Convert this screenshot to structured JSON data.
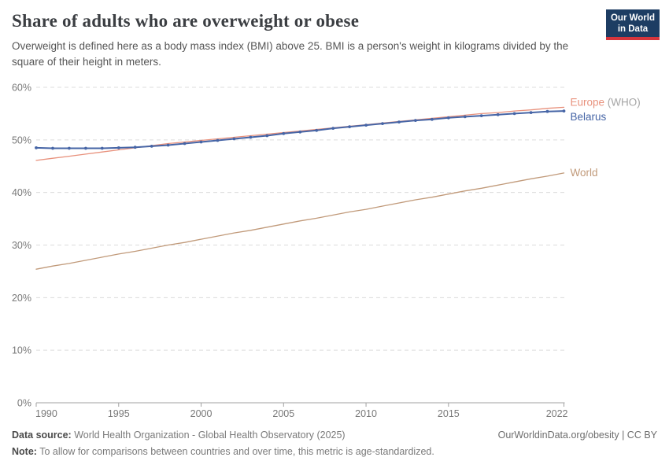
{
  "header": {
    "title": "Share of adults who are overweight or obese",
    "subtitle": "Overweight is defined here as a body mass index (BMI) above 25. BMI is a person's weight in kilograms divided by the square of their height in meters.",
    "logo": {
      "line1": "Our World",
      "line2": "in Data",
      "bg_color": "#1d3d63",
      "accent_color": "#d6353c"
    }
  },
  "chart_data": {
    "type": "line",
    "title": "Share of adults who are overweight or obese",
    "xlabel": "",
    "ylabel": "",
    "ylim": [
      0,
      60
    ],
    "yticks": [
      0,
      10,
      20,
      30,
      40,
      50,
      60
    ],
    "ytick_suffix": "%",
    "xticks": [
      1990,
      1995,
      2000,
      2005,
      2010,
      2015,
      2022
    ],
    "grid": true,
    "grid_color": "#dcdcdc",
    "axis_color": "#a0a0a0",
    "tick_label_color": "#787878",
    "legend_position": "end-of-line-labels",
    "x": [
      1990,
      1991,
      1992,
      1993,
      1994,
      1995,
      1996,
      1997,
      1998,
      1999,
      2000,
      2001,
      2002,
      2003,
      2004,
      2005,
      2006,
      2007,
      2008,
      2009,
      2010,
      2011,
      2012,
      2013,
      2014,
      2015,
      2016,
      2017,
      2018,
      2019,
      2020,
      2021,
      2022
    ],
    "series": [
      {
        "name": "Europe (WHO)",
        "label": "Europe",
        "label_suffix": " (WHO)",
        "suffix_color": "#a5a5a5",
        "color": "#e8917c",
        "line_width": 1.3,
        "marker": false,
        "label_dy": -2,
        "values": [
          46.1,
          46.5,
          46.9,
          47.3,
          47.7,
          48.1,
          48.5,
          48.9,
          49.3,
          49.6,
          49.9,
          50.2,
          50.5,
          50.8,
          51.1,
          51.4,
          51.7,
          52.0,
          52.3,
          52.6,
          52.9,
          53.2,
          53.5,
          53.8,
          54.1,
          54.4,
          54.7,
          55.0,
          55.2,
          55.5,
          55.7,
          56.0,
          56.2
        ]
      },
      {
        "name": "Belarus",
        "label": "Belarus",
        "label_suffix": "",
        "suffix_color": "#a5a5a5",
        "color": "#4665a6",
        "line_width": 2,
        "marker": true,
        "marker_radius": 1.9,
        "label_dy": 12,
        "values": [
          48.5,
          48.4,
          48.4,
          48.4,
          48.4,
          48.5,
          48.6,
          48.8,
          49.0,
          49.3,
          49.6,
          49.9,
          50.2,
          50.5,
          50.8,
          51.2,
          51.5,
          51.8,
          52.2,
          52.5,
          52.8,
          53.1,
          53.4,
          53.7,
          53.9,
          54.2,
          54.4,
          54.6,
          54.8,
          55.0,
          55.2,
          55.4,
          55.5
        ]
      },
      {
        "name": "World",
        "label": "World",
        "label_suffix": "",
        "suffix_color": "#a5a5a5",
        "color": "#c19a7a",
        "line_width": 1.3,
        "marker": false,
        "label_dy": 4,
        "values": [
          25.4,
          26.0,
          26.5,
          27.1,
          27.7,
          28.3,
          28.8,
          29.4,
          30.0,
          30.5,
          31.1,
          31.7,
          32.3,
          32.8,
          33.4,
          34.0,
          34.6,
          35.1,
          35.7,
          36.3,
          36.8,
          37.4,
          38.0,
          38.6,
          39.1,
          39.7,
          40.3,
          40.8,
          41.4,
          42.0,
          42.6,
          43.1,
          43.7
        ]
      }
    ]
  },
  "footer": {
    "source_label": "Data source:",
    "source_text": "World Health Organization - Global Health Observatory (2025)",
    "credit": "OurWorldinData.org/obesity | CC BY",
    "note_label": "Note:",
    "note_text": "To allow for comparisons between countries and over time, this metric is age-standardized."
  }
}
